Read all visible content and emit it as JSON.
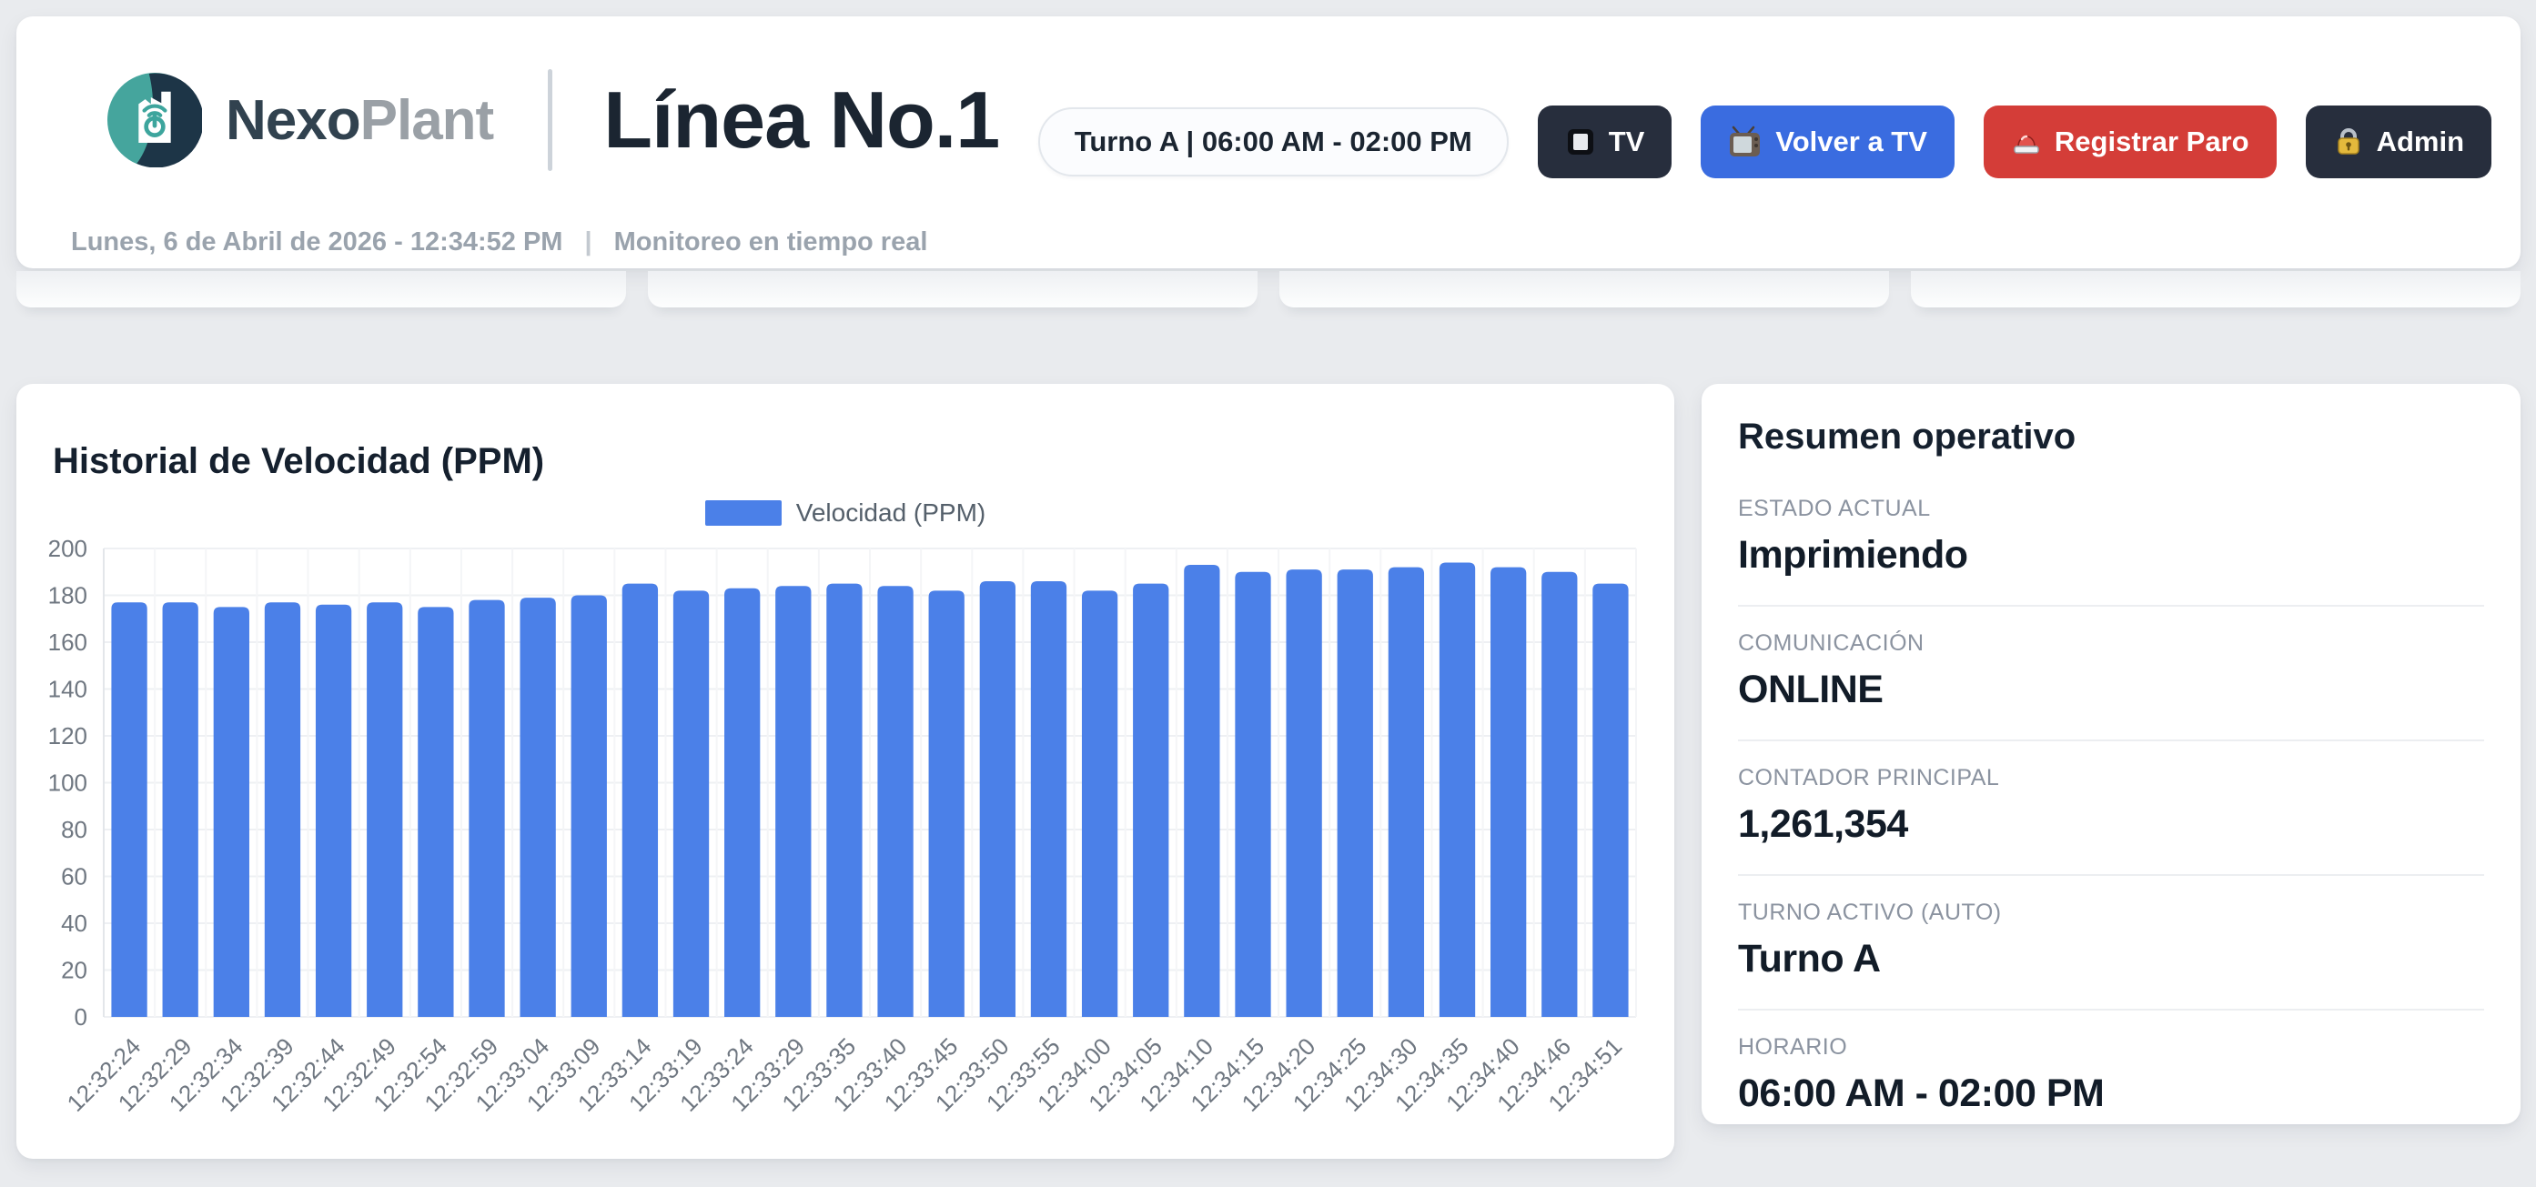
{
  "header": {
    "brand_primary": "Nexo",
    "brand_secondary": "Plant",
    "page_title": "Línea No.1",
    "datetime": "Lunes, 6 de Abril de 2026 - 12:34:52 PM",
    "separator": "|",
    "subtitle": "Monitoreo en tiempo real",
    "shift_pill": "Turno A | 06:00 AM - 02:00 PM",
    "buttons": {
      "tv": "TV",
      "volver": "Volver a TV",
      "registrar": "Registrar Paro",
      "admin": "Admin"
    }
  },
  "chart_card": {
    "title": "Historial de Velocidad (PPM)",
    "legend_label": "Velocidad (PPM)"
  },
  "chart_data": {
    "type": "bar",
    "title": "Historial de Velocidad (PPM)",
    "series_name": "Velocidad (PPM)",
    "categories": [
      "12:32:24",
      "12:32:29",
      "12:32:34",
      "12:32:39",
      "12:32:44",
      "12:32:49",
      "12:32:54",
      "12:32:59",
      "12:33:04",
      "12:33:09",
      "12:33:14",
      "12:33:19",
      "12:33:24",
      "12:33:29",
      "12:33:35",
      "12:33:40",
      "12:33:45",
      "12:33:50",
      "12:33:55",
      "12:34:00",
      "12:34:05",
      "12:34:10",
      "12:34:15",
      "12:34:20",
      "12:34:25",
      "12:34:30",
      "12:34:35",
      "12:34:40",
      "12:34:46",
      "12:34:51"
    ],
    "values": [
      177,
      177,
      175,
      177,
      176,
      177,
      175,
      178,
      179,
      180,
      185,
      182,
      183,
      184,
      185,
      184,
      182,
      186,
      186,
      182,
      185,
      193,
      190,
      191,
      191,
      192,
      194,
      192,
      190,
      185
    ],
    "xlabel": "",
    "ylabel": "",
    "ylim": [
      0,
      200
    ],
    "ytick_step": 20,
    "grid": true,
    "legend_position": "top",
    "bar_color": "#4b80e8"
  },
  "summary_card": {
    "title": "Resumen operativo",
    "rows": [
      {
        "label": "ESTADO ACTUAL",
        "value": "Imprimiendo"
      },
      {
        "label": "COMUNICACIÓN",
        "value": "ONLINE"
      },
      {
        "label": "CONTADOR PRINCIPAL",
        "value": "1,261,354"
      },
      {
        "label": "TURNO ACTIVO (AUTO)",
        "value": "Turno A"
      },
      {
        "label": "HORARIO",
        "value": "06:00 AM - 02:00 PM"
      }
    ]
  },
  "colors": {
    "page_bg": "#e9ebee",
    "bar_blue": "#4b80e8",
    "button_blue": "#3a6ce0",
    "button_red": "#d43d38",
    "button_dark": "#272e3d",
    "brand_navy": "#31424f",
    "brand_gray": "#9aa0a6",
    "logo_teal": "#45a59d",
    "logo_navy": "#1d3547",
    "text_dark": "#15202e",
    "text_gray": "#8b93a0"
  }
}
